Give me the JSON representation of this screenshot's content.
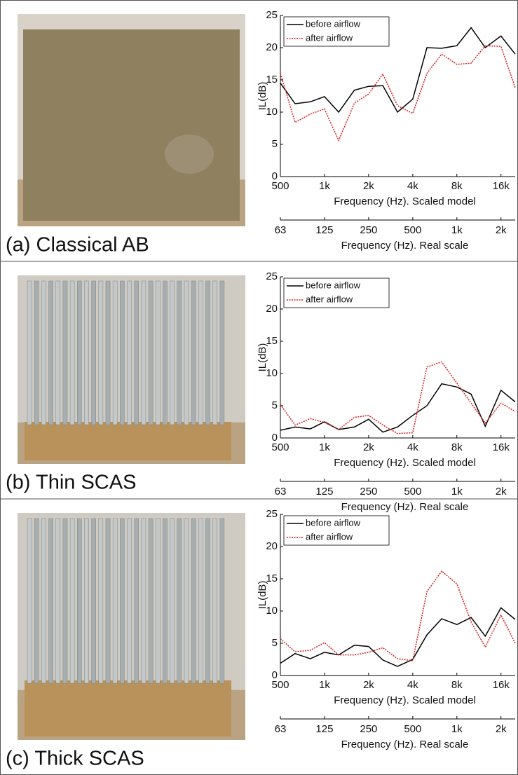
{
  "chart_data": [
    {
      "type": "line",
      "caption": "(a) Classical AB",
      "ylabel": "IL(dB)",
      "xlabel": "Frequency (Hz). Scaled model",
      "x2label": "Frequency (Hz). Real scale",
      "log_x": true,
      "legend": "upper left",
      "x": [
        500,
        630,
        800,
        1000,
        1250,
        1600,
        2000,
        2500,
        3150,
        4000,
        5000,
        6300,
        8000,
        10000,
        12500,
        16000,
        20000
      ],
      "series": [
        {
          "name": "before airflow",
          "color": "#000000",
          "dash": "solid",
          "values": [
            14.5,
            11.3,
            11.6,
            12.4,
            10,
            13.4,
            14,
            14.1,
            10,
            12,
            20,
            19.9,
            20.3,
            23.1,
            20,
            21.8,
            19
          ]
        },
        {
          "name": "after airflow",
          "color": "#d42020",
          "dash": "dotted",
          "values": [
            16,
            8.4,
            9.7,
            10.5,
            5.6,
            11.4,
            12.8,
            15.9,
            11,
            9.8,
            16,
            19,
            17.4,
            17.6,
            20.3,
            20.2,
            13.8
          ]
        }
      ],
      "xlim": [
        500,
        20000
      ],
      "ylim": [
        0,
        25
      ],
      "yticks": [
        0,
        5,
        10,
        15,
        20,
        25
      ],
      "xticks": [
        500,
        {
          "value": 1000,
          "label": "1k"
        },
        {
          "value": 2000,
          "label": "2k"
        },
        {
          "value": 4000,
          "label": "4k"
        },
        {
          "value": 8000,
          "label": "8k"
        },
        {
          "value": 16000,
          "label": "16k"
        }
      ],
      "x2lim": [
        62.5,
        2500
      ],
      "x2ticks": [
        {
          "value": 62.5,
          "label": "63"
        },
        125,
        250,
        500,
        {
          "value": 1000,
          "label": "1k"
        },
        {
          "value": 2000,
          "label": "2k"
        }
      ]
    },
    {
      "type": "line",
      "caption": "(b) Thin SCAS",
      "ylabel": "IL(dB)",
      "xlabel": "Frequency (Hz). Scaled model",
      "x2label": "Frequency (Hz). Real scale",
      "log_x": true,
      "legend": "upper left",
      "x": [
        500,
        630,
        800,
        1000,
        1250,
        1600,
        2000,
        2500,
        3150,
        4000,
        5000,
        6300,
        8000,
        10000,
        12500,
        16000,
        20000
      ],
      "series": [
        {
          "name": "before airflow",
          "color": "#000000",
          "dash": "solid",
          "values": [
            1.2,
            1.7,
            1.4,
            2.5,
            1.3,
            1.7,
            2.9,
            0.9,
            1.7,
            3.5,
            5,
            8.4,
            7.9,
            6.8,
            1.8,
            7.4,
            5.6
          ]
        },
        {
          "name": "after airflow",
          "color": "#d42020",
          "dash": "dotted",
          "values": [
            5.2,
            2,
            3,
            2.4,
            1.3,
            3.2,
            3.5,
            2,
            0.7,
            0.8,
            11,
            11.8,
            8.5,
            5.4,
            2.3,
            5.4,
            4.1
          ]
        }
      ],
      "xlim": [
        500,
        20000
      ],
      "ylim": [
        0,
        25
      ],
      "yticks": [
        0,
        5,
        10,
        15,
        20,
        25
      ],
      "xticks": [
        500,
        {
          "value": 1000,
          "label": "1k"
        },
        {
          "value": 2000,
          "label": "2k"
        },
        {
          "value": 4000,
          "label": "4k"
        },
        {
          "value": 8000,
          "label": "8k"
        },
        {
          "value": 16000,
          "label": "16k"
        }
      ],
      "x2lim": [
        62.5,
        2500
      ],
      "x2ticks": [
        {
          "value": 62.5,
          "label": "63"
        },
        125,
        250,
        500,
        {
          "value": 1000,
          "label": "1k"
        },
        {
          "value": 2000,
          "label": "2k"
        }
      ]
    },
    {
      "type": "line",
      "caption": "(c) Thick SCAS",
      "ylabel": "IL(dB)",
      "xlabel": "Frequency (Hz). Scaled model",
      "x2label": "Frequency (Hz). Real scale",
      "log_x": true,
      "legend": "upper left",
      "x": [
        500,
        630,
        800,
        1000,
        1250,
        1600,
        2000,
        2500,
        3150,
        4000,
        5000,
        6300,
        8000,
        10000,
        12500,
        16000,
        20000
      ],
      "series": [
        {
          "name": "before airflow",
          "color": "#000000",
          "dash": "solid",
          "values": [
            1.9,
            3.4,
            2.6,
            3.6,
            3.2,
            4.7,
            4.5,
            2.4,
            1.4,
            2.5,
            6.3,
            8.8,
            7.9,
            9,
            6.1,
            10.5,
            8.7
          ]
        },
        {
          "name": "after airflow",
          "color": "#d42020",
          "dash": "dotted",
          "values": [
            5.7,
            3.7,
            3.9,
            5.1,
            3.2,
            3.2,
            3.6,
            4.3,
            2.6,
            2.3,
            13,
            16.2,
            14.2,
            8.3,
            4.4,
            9.4,
            5
          ]
        }
      ],
      "xlim": [
        500,
        20000
      ],
      "ylim": [
        0,
        25
      ],
      "yticks": [
        0,
        5,
        10,
        15,
        20,
        25
      ],
      "xticks": [
        500,
        {
          "value": 1000,
          "label": "1k"
        },
        {
          "value": 2000,
          "label": "2k"
        },
        {
          "value": 4000,
          "label": "4k"
        },
        {
          "value": 8000,
          "label": "8k"
        },
        {
          "value": 16000,
          "label": "16k"
        }
      ],
      "x2lim": [
        62.5,
        2500
      ],
      "x2ticks": [
        {
          "value": 62.5,
          "label": "63"
        },
        125,
        250,
        500,
        {
          "value": 1000,
          "label": "1k"
        },
        {
          "value": 2000,
          "label": "2k"
        }
      ]
    }
  ]
}
